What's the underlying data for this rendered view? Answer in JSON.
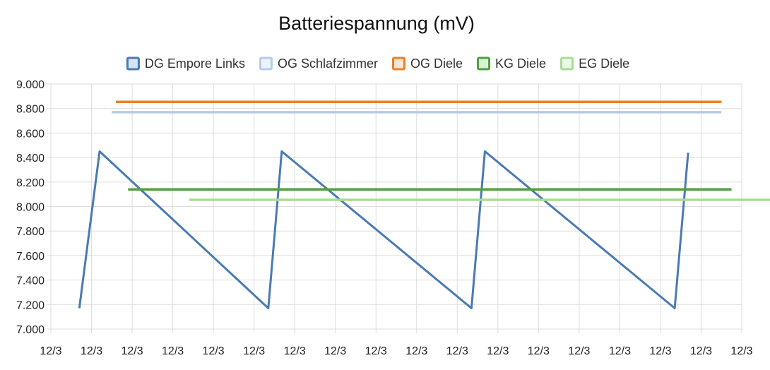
{
  "chart_data": {
    "type": "line",
    "title": "Batteriespannung (mV)",
    "xlabel": "",
    "ylabel": "",
    "ylim": [
      7000,
      9000
    ],
    "y_ticks": [
      "9.000",
      "8.800",
      "8.600",
      "8.400",
      "8.200",
      "8.000",
      "7.800",
      "7.600",
      "7.400",
      "7.200",
      "7.000"
    ],
    "x_ticks": [
      "12/3",
      "12/3",
      "12/3",
      "12/3",
      "12/3",
      "12/3",
      "12/3",
      "12/3",
      "12/3",
      "12/3",
      "12/3",
      "12/3",
      "12/3",
      "12/3",
      "12/3",
      "12/3",
      "12/3",
      "12/3"
    ],
    "x_range": [
      0,
      17
    ],
    "grid": true,
    "legend_position": "top",
    "series": [
      {
        "name": "DG Empore Links",
        "color": "#4a7ab3",
        "fill": "#d9e4f2",
        "x": [
          0.7,
          1.2,
          5.35,
          5.68,
          10.35,
          10.68,
          15.35,
          15.68
        ],
        "y": [
          7170,
          8450,
          7170,
          8450,
          7170,
          8450,
          7170,
          8440
        ]
      },
      {
        "name": "OG Schlafzimmer",
        "color": "#b6cce6",
        "fill": "#ecf2f9",
        "x": [
          1.5,
          16.5
        ],
        "y": [
          8770,
          8770
        ]
      },
      {
        "name": "OG Diele",
        "color": "#f07f22",
        "fill": "#fde6d2",
        "x": [
          1.6,
          16.5
        ],
        "y": [
          8855,
          8855
        ]
      },
      {
        "name": "KG Diele",
        "color": "#4ea043",
        "fill": "#dcefd9",
        "x": [
          1.9,
          16.75
        ],
        "y": [
          8140,
          8140
        ]
      },
      {
        "name": "EG Diele",
        "color": "#a8dd96",
        "fill": "#eef8ea",
        "x": [
          3.4,
          17.85
        ],
        "y": [
          8055,
          8055
        ]
      }
    ]
  }
}
